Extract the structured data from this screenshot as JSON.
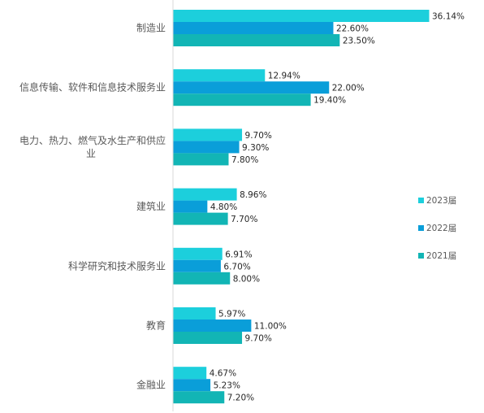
{
  "chart_data": {
    "type": "bar",
    "orientation": "horizontal",
    "categories": [
      [
        "制造业"
      ],
      [
        "信息传输、软件和信息技术服务业"
      ],
      [
        "电力、热力、燃气及水生产和供应",
        "业"
      ],
      [
        "建筑业"
      ],
      [
        "科学研究和技术服务业"
      ],
      [
        "教育"
      ],
      [
        "金融业"
      ]
    ],
    "series": [
      {
        "name": "2023届",
        "color": "#1ccfdc",
        "values": [
          36.14,
          12.94,
          9.7,
          8.96,
          6.91,
          5.97,
          4.67
        ],
        "labels": [
          "36.14%",
          "12.94%",
          "9.70%",
          "8.96%",
          "6.91%",
          "5.97%",
          "4.67%"
        ]
      },
      {
        "name": "2022届",
        "color": "#0a9ed9",
        "values": [
          22.6,
          22.0,
          9.3,
          4.8,
          6.7,
          11.0,
          5.23
        ],
        "labels": [
          "22.60%",
          "22.00%",
          "9.30%",
          "4.80%",
          "6.70%",
          "11.00%",
          "5.23%"
        ]
      },
      {
        "name": "2021届",
        "color": "#12b5b5",
        "values": [
          23.5,
          19.4,
          7.8,
          7.7,
          8.0,
          9.7,
          7.2
        ],
        "labels": [
          "23.50%",
          "19.40%",
          "7.80%",
          "7.70%",
          "8.00%",
          "9.70%",
          "7.20%"
        ]
      }
    ],
    "xlim": [
      0,
      40
    ],
    "grid": false,
    "legend_position": "right"
  }
}
